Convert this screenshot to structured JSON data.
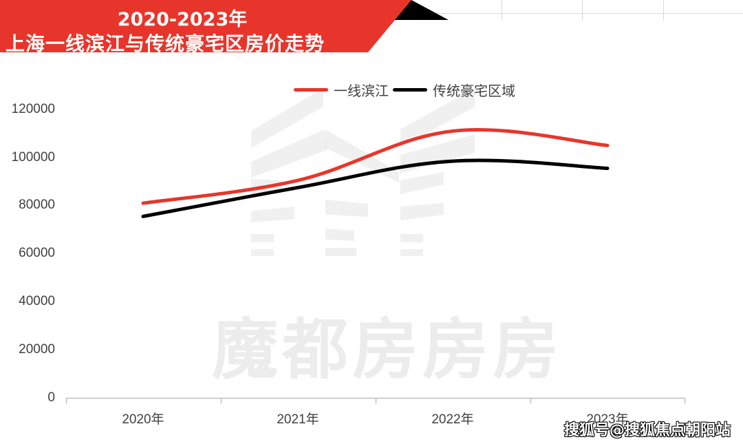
{
  "header": {
    "title_line1": "2020-2023年",
    "title_line2": "上海一线滨江与传统豪宅区房价走势",
    "accent_color": "#E8352B",
    "secondary_color": "#000000"
  },
  "legend": {
    "items": [
      {
        "label": "一线滨江",
        "color": "#E8352B"
      },
      {
        "label": "传统豪宅区域",
        "color": "#000000"
      }
    ]
  },
  "axes": {
    "y_ticks": [
      "120000",
      "100000",
      "80000",
      "60000",
      "40000",
      "20000",
      "0"
    ],
    "x_ticks": [
      "2020年",
      "2021年",
      "2022年",
      "2023年"
    ]
  },
  "watermark": {
    "text": "魔都房房房",
    "credit": "搜狐号@搜狐焦点朝阳站"
  },
  "chart_data": {
    "type": "line",
    "title": "2020-2023年上海一线滨江与传统豪宅区房价走势",
    "categories": [
      "2020年",
      "2021年",
      "2022年",
      "2023年"
    ],
    "series": [
      {
        "name": "一线滨江",
        "color": "#E8352B",
        "values": [
          81000,
          90500,
          111000,
          105000
        ]
      },
      {
        "name": "传统豪宅区域",
        "color": "#000000",
        "values": [
          75500,
          87500,
          98500,
          95500
        ]
      }
    ],
    "xlabel": "",
    "ylabel": "",
    "ylim": [
      0,
      120000
    ],
    "y_tick_step": 20000,
    "grid": false,
    "smooth": true,
    "legend_position": "top"
  }
}
